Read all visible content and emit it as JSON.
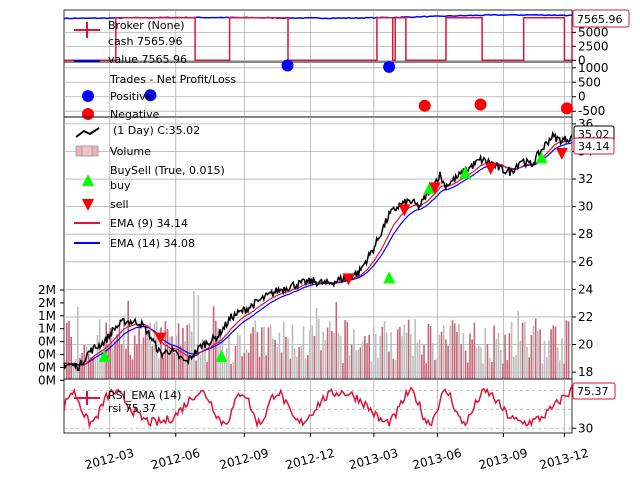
{
  "chart_data": [
    {
      "panel": "broker",
      "type": "line",
      "title": "",
      "legend": [
        "Broker (None)",
        "cash 7565.96",
        "value 7565.96"
      ],
      "series": [
        {
          "name": "cash",
          "color": "#dc143c",
          "last": 7565.96
        },
        {
          "name": "value",
          "color": "#0000ff",
          "last": 7565.96
        }
      ],
      "y_ticks": [
        "5000",
        "2500",
        "0"
      ],
      "ylim": [
        -300,
        9000
      ],
      "last_label": "7565.96",
      "cash_pattern": [
        [
          0,
          0
        ],
        [
          0.102,
          0
        ],
        [
          0.102,
          7600
        ],
        [
          0.258,
          7600
        ],
        [
          0.258,
          0
        ],
        [
          0.326,
          0
        ],
        [
          0.326,
          7600
        ],
        [
          0.441,
          7600
        ],
        [
          0.441,
          0
        ],
        [
          0.616,
          0
        ],
        [
          0.616,
          7600
        ],
        [
          0.647,
          7600
        ],
        [
          0.647,
          0
        ],
        [
          0.652,
          0
        ],
        [
          0.652,
          7600
        ],
        [
          0.673,
          7600
        ],
        [
          0.673,
          0
        ],
        [
          0.752,
          0
        ],
        [
          0.752,
          7600
        ],
        [
          0.823,
          7600
        ],
        [
          0.823,
          0
        ],
        [
          0.905,
          0
        ],
        [
          0.905,
          7600
        ],
        [
          0.985,
          7600
        ],
        [
          0.985,
          0
        ],
        [
          1.0,
          0
        ],
        [
          1.0,
          7560
        ]
      ]
    },
    {
      "panel": "trades",
      "type": "scatter",
      "legend": [
        "Trades - Net Profit/Loss",
        "Positive",
        "Negative"
      ],
      "y_ticks": [
        "1000",
        "500",
        "0",
        "-500"
      ],
      "ylim": [
        -700,
        1200
      ],
      "positive": [
        [
          0.17,
          50
        ],
        [
          0.44,
          1080
        ],
        [
          0.64,
          1030
        ]
      ],
      "negative": [
        [
          0.71,
          -310
        ],
        [
          0.82,
          -270
        ],
        [
          0.99,
          -400
        ]
      ]
    },
    {
      "panel": "price",
      "type": "line",
      "legend": [
        "(1 Day) C:35.02",
        "Volume",
        "BuySell (True, 0.015)",
        "buy",
        "sell",
        "EMA (9) 34.14",
        "EMA (14) 34.08"
      ],
      "y_ticks": [
        "36",
        "34",
        "32",
        "30",
        "28",
        "26",
        "24",
        "22",
        "20",
        "18"
      ],
      "ylim": [
        17.5,
        36.5
      ],
      "volume_ticks": [
        "2M",
        "2M",
        "1M",
        "1M",
        "0M",
        "0M",
        "0M",
        "0M"
      ],
      "last_close_label": "35.02",
      "ema_label": "34.14",
      "close_keypoints": [
        [
          0,
          18.6
        ],
        [
          0.03,
          18.4
        ],
        [
          0.05,
          19.5
        ],
        [
          0.08,
          20.2
        ],
        [
          0.1,
          21.2
        ],
        [
          0.12,
          21.7
        ],
        [
          0.15,
          21.6
        ],
        [
          0.17,
          20.6
        ],
        [
          0.19,
          19.3
        ],
        [
          0.21,
          19.6
        ],
        [
          0.24,
          18.7
        ],
        [
          0.27,
          19.9
        ],
        [
          0.3,
          20.5
        ],
        [
          0.33,
          22.0
        ],
        [
          0.36,
          22.6
        ],
        [
          0.39,
          23.3
        ],
        [
          0.42,
          23.9
        ],
        [
          0.45,
          24.3
        ],
        [
          0.49,
          24.6
        ],
        [
          0.52,
          24.4
        ],
        [
          0.55,
          24.8
        ],
        [
          0.58,
          25.2
        ],
        [
          0.61,
          27.0
        ],
        [
          0.64,
          29.4
        ],
        [
          0.66,
          30.1
        ],
        [
          0.68,
          30.4
        ],
        [
          0.7,
          30.0
        ],
        [
          0.72,
          31.2
        ],
        [
          0.74,
          32.3
        ],
        [
          0.75,
          31.5
        ],
        [
          0.77,
          32.0
        ],
        [
          0.79,
          32.6
        ],
        [
          0.82,
          33.4
        ],
        [
          0.84,
          33.2
        ],
        [
          0.86,
          32.7
        ],
        [
          0.88,
          32.5
        ],
        [
          0.9,
          33.4
        ],
        [
          0.92,
          33.0
        ],
        [
          0.94,
          34.1
        ],
        [
          0.96,
          35.1
        ],
        [
          0.98,
          34.8
        ],
        [
          1.0,
          35.02
        ]
      ],
      "buy_markers": [
        [
          0.08,
          19.1
        ],
        [
          0.31,
          19.1
        ],
        [
          0.64,
          24.8
        ],
        [
          0.72,
          31.3
        ],
        [
          0.79,
          32.4
        ],
        [
          0.94,
          33.5
        ]
      ],
      "sell_markers": [
        [
          0.19,
          20.5
        ],
        [
          0.56,
          24.8
        ],
        [
          0.67,
          29.8
        ],
        [
          0.73,
          31.4
        ],
        [
          0.84,
          32.8
        ],
        [
          0.98,
          33.9
        ]
      ]
    },
    {
      "panel": "rsi",
      "type": "line",
      "legend": [
        "RSI_EMA (14)",
        "rsi 75.37"
      ],
      "y_ticks": [
        "30"
      ],
      "ylim": [
        25,
        82
      ],
      "ref_lines": [
        30,
        50,
        70
      ],
      "last_label": "75.37"
    }
  ],
  "x_axis": {
    "ticks": [
      "2012-03",
      "2012-06",
      "2012-09",
      "2012-12",
      "2013-03",
      "2013-06",
      "2013-09",
      "2013-12"
    ],
    "tick_positions": [
      0.09,
      0.22,
      0.355,
      0.485,
      0.61,
      0.735,
      0.865,
      0.985
    ],
    "label_rotation": -15
  },
  "colors": {
    "price": "#000000",
    "ema9": "#dc143c",
    "ema14": "#0000ff",
    "buy": "#00ff00",
    "sell": "#ff0000",
    "volume": "#bdbdbd",
    "rsi": "#dc143c",
    "positive": "#0000ff",
    "negative": "#ff0000"
  }
}
